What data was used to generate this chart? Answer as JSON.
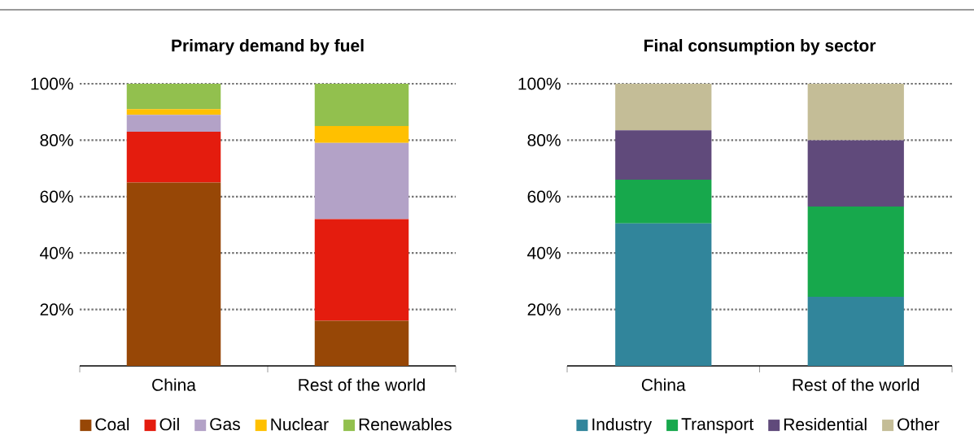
{
  "chart_data": [
    {
      "type": "bar",
      "stacked": true,
      "title": "Primary demand by fuel",
      "categories": [
        "China",
        "Rest of the world"
      ],
      "series": [
        {
          "name": "Coal",
          "color": "#974706",
          "values": [
            65,
            16
          ]
        },
        {
          "name": "Oil",
          "color": "#e41c0e",
          "values": [
            18,
            36
          ]
        },
        {
          "name": "Gas",
          "color": "#b3a2c7",
          "values": [
            6,
            27
          ]
        },
        {
          "name": "Nuclear",
          "color": "#ffc000",
          "values": [
            2,
            6
          ]
        },
        {
          "name": "Renewables",
          "color": "#92c04e",
          "values": [
            9,
            15
          ]
        }
      ],
      "ylim": [
        0,
        100
      ],
      "yticks": [
        {
          "value": 20,
          "label": "20%"
        },
        {
          "value": 40,
          "label": "40%"
        },
        {
          "value": 60,
          "label": "60%"
        },
        {
          "value": 80,
          "label": "80%"
        },
        {
          "value": 100,
          "label": "100%"
        }
      ],
      "grid": "y",
      "legend": "bottom"
    },
    {
      "type": "bar",
      "stacked": true,
      "title": "Final consumption by sector",
      "categories": [
        "China",
        "Rest of the world"
      ],
      "series": [
        {
          "name": "Industry",
          "color": "#31859b",
          "values": [
            50.5,
            24.5
          ]
        },
        {
          "name": "Transport",
          "color": "#17a84c",
          "values": [
            15.5,
            32
          ]
        },
        {
          "name": "Residential",
          "color": "#604a7b",
          "values": [
            17.5,
            23.5
          ]
        },
        {
          "name": "Other",
          "color": "#c4bd97",
          "values": [
            16.5,
            20
          ]
        }
      ],
      "ylim": [
        0,
        100
      ],
      "yticks": [
        {
          "value": 20,
          "label": "20%"
        },
        {
          "value": 40,
          "label": "40%"
        },
        {
          "value": 60,
          "label": "60%"
        },
        {
          "value": 80,
          "label": "80%"
        },
        {
          "value": 100,
          "label": "100%"
        }
      ],
      "grid": "y",
      "legend": "bottom"
    }
  ]
}
